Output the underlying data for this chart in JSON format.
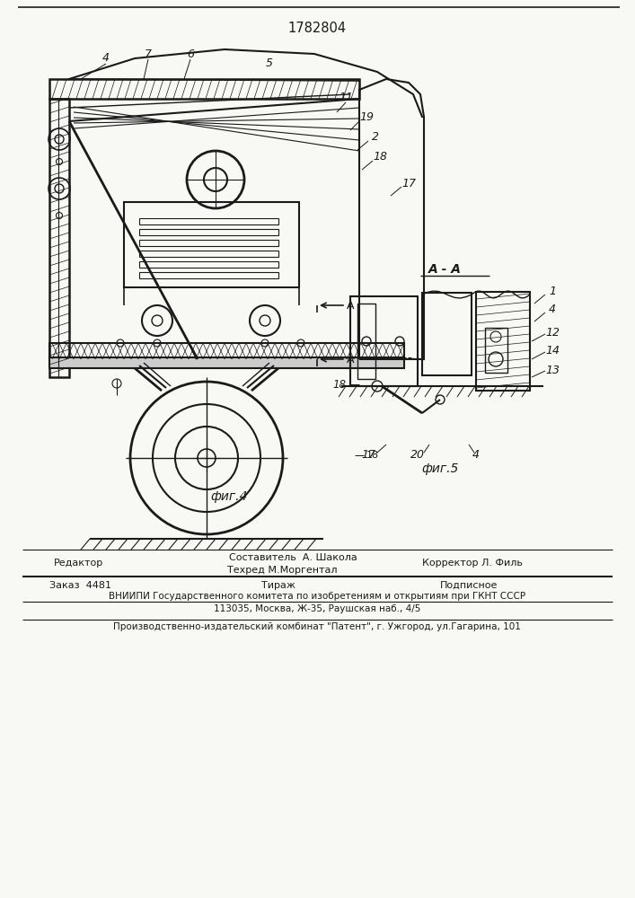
{
  "patent_number": "1782804",
  "bg_color": "#f8f8f4",
  "line_color": "#1a1a1a",
  "footer": {
    "editor_label": "Редактор",
    "compositor": "Составитель  А. Шакола",
    "techred": "Техред М.Моргентал",
    "corrector": "Корректор Л. Филь",
    "order": "Заказ  4481",
    "tirazh": "Тираж",
    "podpisnoe": "Подписное",
    "vniipii": "ВНИИПИ Государственного комитета по изобретениям и открытиям при ГКНТ СССР",
    "address": "113035, Москва, Ж-35, Раушская наб., 4/5",
    "factory": "Производственно-издательский комбинат \"Патент\", г. Ужгород, ул.Гагарина, 101"
  },
  "fig4_label": "фиг.4",
  "fig5_label": "фиг.5",
  "section_label": "А - А"
}
